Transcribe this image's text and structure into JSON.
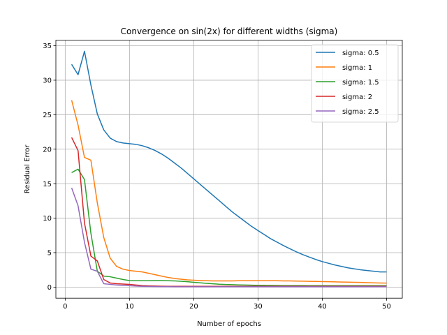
{
  "chart_data": {
    "type": "line",
    "title": "Convergence on sin(2x) for different widths (sigma)",
    "xlabel": "Number of epochs",
    "ylabel": "Residual Error",
    "xlim": [
      -1.45,
      52.45
    ],
    "ylim": [
      -1.6,
      35.8
    ],
    "xticks": [
      0,
      10,
      20,
      30,
      40,
      50
    ],
    "yticks": [
      0,
      5,
      10,
      15,
      20,
      25,
      30,
      35
    ],
    "grid": true,
    "legend_position": "top-right",
    "x": [
      1,
      2,
      3,
      4,
      5,
      6,
      7,
      8,
      9,
      10,
      11,
      12,
      13,
      14,
      15,
      16,
      17,
      18,
      19,
      20,
      21,
      22,
      23,
      24,
      25,
      26,
      27,
      28,
      29,
      30,
      31,
      32,
      33,
      34,
      35,
      36,
      37,
      38,
      39,
      40,
      41,
      42,
      43,
      44,
      45,
      46,
      47,
      48,
      49,
      50
    ],
    "series": [
      {
        "name": "sigma: 0.5",
        "color": "#1f77b4",
        "values": [
          32.3,
          30.8,
          34.2,
          29.3,
          25.1,
          22.8,
          21.6,
          21.1,
          20.9,
          20.8,
          20.7,
          20.5,
          20.2,
          19.8,
          19.3,
          18.7,
          18.0,
          17.3,
          16.5,
          15.7,
          14.9,
          14.1,
          13.3,
          12.5,
          11.7,
          10.9,
          10.2,
          9.5,
          8.8,
          8.2,
          7.6,
          7.0,
          6.5,
          6.0,
          5.55,
          5.1,
          4.7,
          4.35,
          4.0,
          3.7,
          3.45,
          3.2,
          3.0,
          2.8,
          2.65,
          2.5,
          2.4,
          2.3,
          2.2,
          2.2
        ]
      },
      {
        "name": "sigma: 1",
        "color": "#ff7f0e",
        "values": [
          27.1,
          23.5,
          18.8,
          18.4,
          12.2,
          7.2,
          4.2,
          3.0,
          2.6,
          2.4,
          2.3,
          2.2,
          2.0,
          1.8,
          1.6,
          1.4,
          1.25,
          1.15,
          1.05,
          1.0,
          0.95,
          0.92,
          0.9,
          0.9,
          0.9,
          0.9,
          0.92,
          0.92,
          0.93,
          0.93,
          0.93,
          0.92,
          0.92,
          0.9,
          0.9,
          0.88,
          0.86,
          0.84,
          0.82,
          0.8,
          0.78,
          0.76,
          0.74,
          0.72,
          0.7,
          0.68,
          0.65,
          0.62,
          0.6,
          0.58
        ]
      },
      {
        "name": "sigma: 1.5",
        "color": "#2ca02c",
        "values": [
          16.6,
          17.1,
          15.6,
          7.8,
          2.3,
          1.6,
          1.5,
          1.3,
          1.1,
          0.95,
          0.92,
          0.92,
          0.93,
          0.95,
          0.95,
          0.93,
          0.9,
          0.85,
          0.78,
          0.7,
          0.62,
          0.55,
          0.48,
          0.42,
          0.38,
          0.35,
          0.32,
          0.3,
          0.28,
          0.26,
          0.25,
          0.24,
          0.23,
          0.22,
          0.22,
          0.21,
          0.21,
          0.2,
          0.2,
          0.2,
          0.2,
          0.2,
          0.2,
          0.2,
          0.2,
          0.2,
          0.2,
          0.2,
          0.2,
          0.2
        ]
      },
      {
        "name": "sigma: 2",
        "color": "#d62728",
        "values": [
          21.7,
          19.8,
          9.3,
          4.5,
          3.8,
          1.1,
          0.6,
          0.5,
          0.45,
          0.4,
          0.3,
          0.22,
          0.18,
          0.15,
          0.13,
          0.12,
          0.12,
          0.12,
          0.12,
          0.12,
          0.12,
          0.12,
          0.12,
          0.12,
          0.12,
          0.12,
          0.12,
          0.12,
          0.12,
          0.12,
          0.12,
          0.12,
          0.12,
          0.12,
          0.12,
          0.12,
          0.12,
          0.12,
          0.12,
          0.12,
          0.12,
          0.12,
          0.12,
          0.12,
          0.12,
          0.12,
          0.12,
          0.12,
          0.12,
          0.12
        ]
      },
      {
        "name": "sigma: 2.5",
        "color": "#9467bd",
        "values": [
          14.4,
          11.8,
          6.5,
          2.6,
          2.3,
          0.5,
          0.4,
          0.3,
          0.25,
          0.2,
          0.15,
          0.12,
          0.1,
          0.08,
          0.07,
          0.06,
          0.05,
          0.05,
          0.05,
          0.05,
          0.05,
          0.05,
          0.05,
          0.05,
          0.05,
          0.05,
          0.05,
          0.05,
          0.05,
          0.05,
          0.05,
          0.05,
          0.05,
          0.05,
          0.05,
          0.05,
          0.05,
          0.05,
          0.05,
          0.05,
          0.05,
          0.05,
          0.05,
          0.05,
          0.05,
          0.05,
          0.05,
          0.05,
          0.05,
          0.05
        ]
      }
    ]
  }
}
